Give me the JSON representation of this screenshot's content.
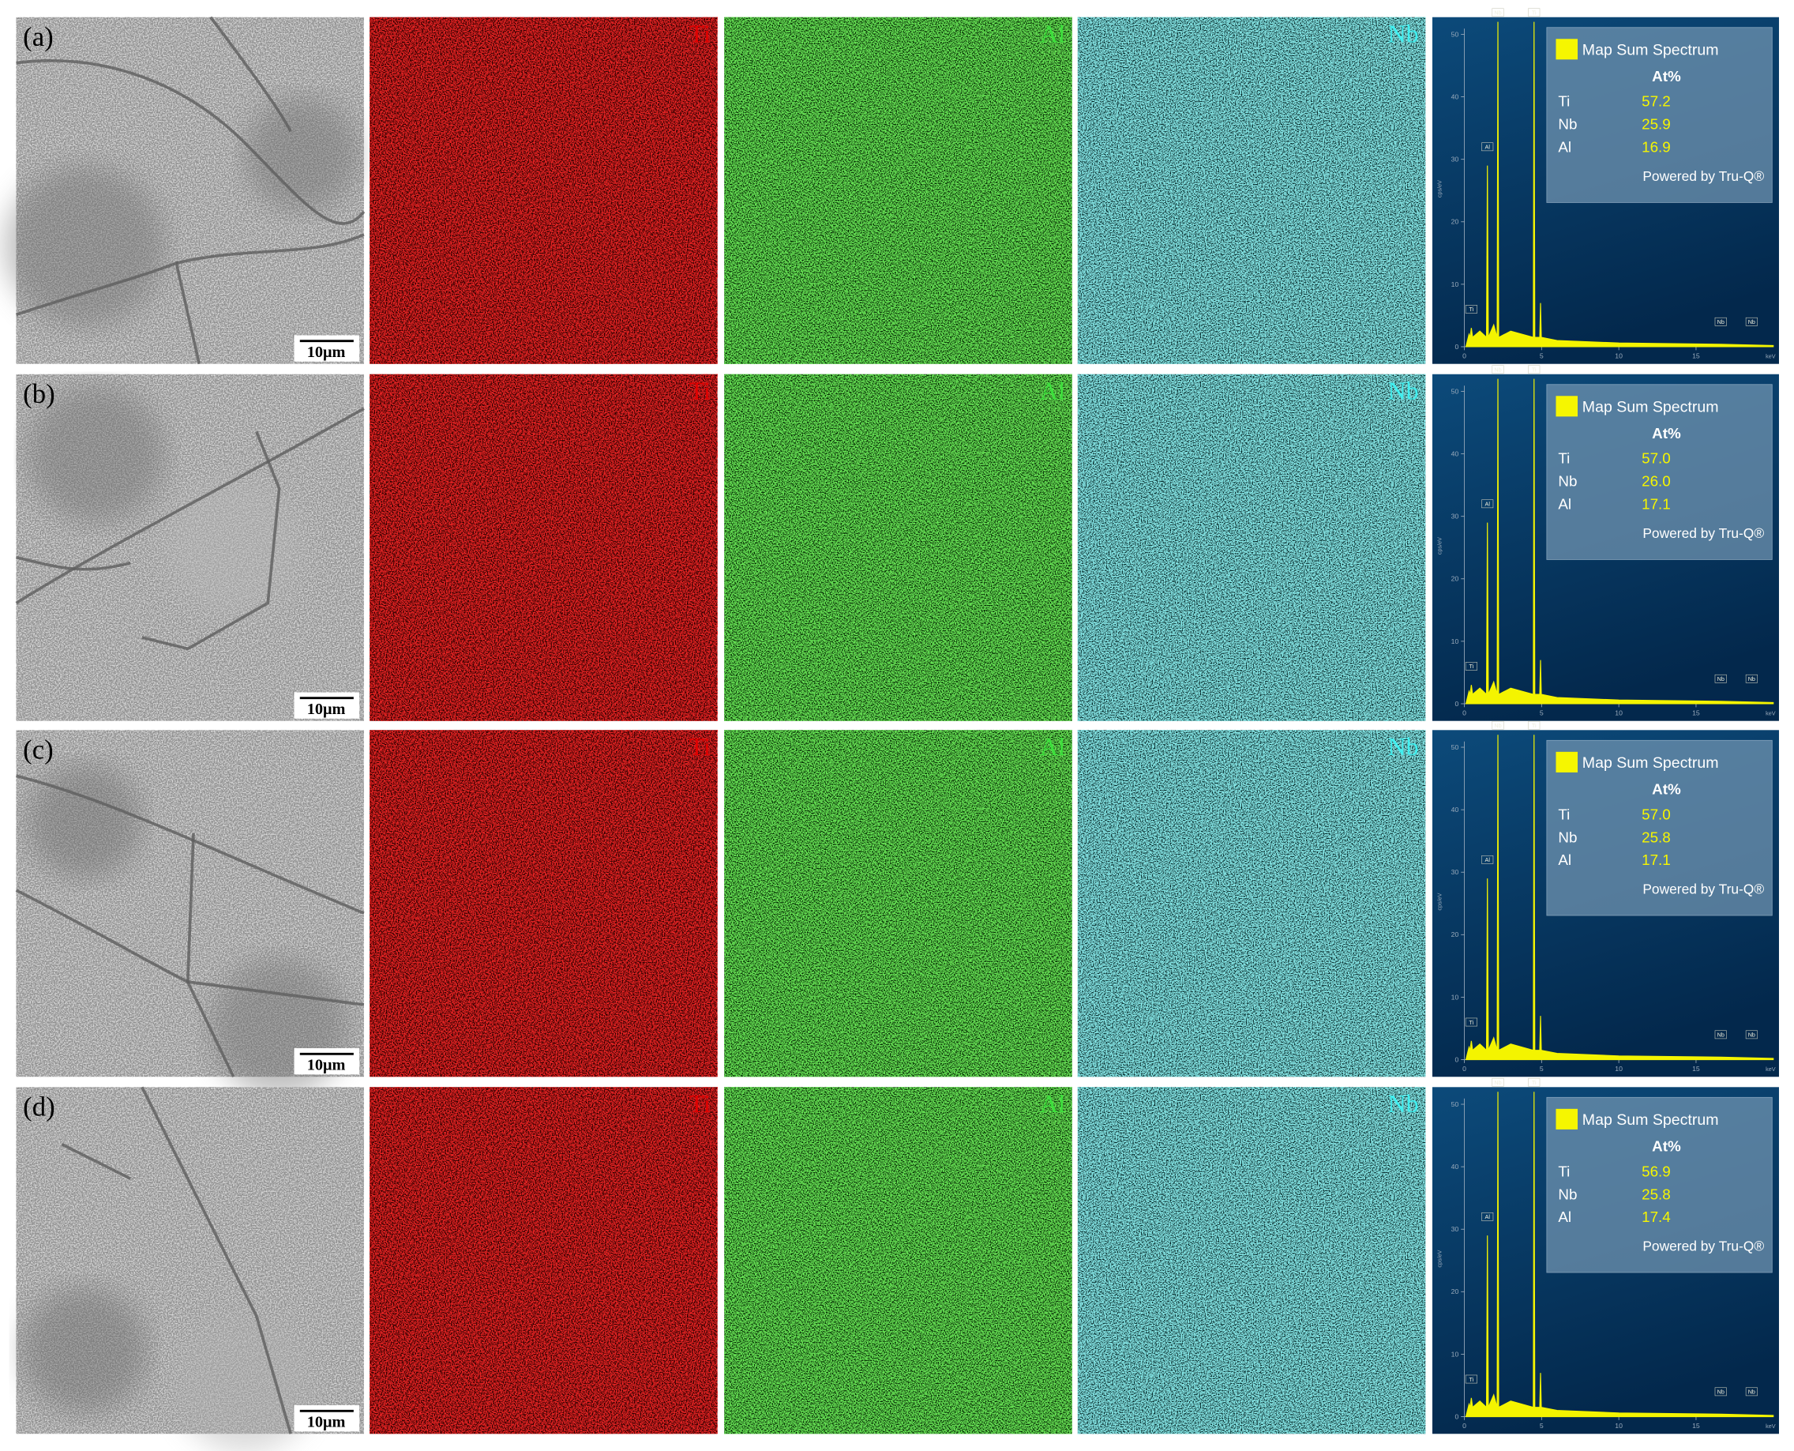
{
  "figure": {
    "rows": [
      {
        "label": "(a)",
        "scale_bar": "10μm",
        "maps": [
          "Ti",
          "Al",
          "Nb"
        ],
        "spectrum": {
          "legend": "Map Sum Spectrum",
          "header": "At%",
          "composition": [
            [
              "Ti",
              "57.2"
            ],
            [
              "Nb",
              "25.9"
            ],
            [
              "Al",
              "16.9"
            ]
          ],
          "footer": "Powered by Tru-Q®"
        }
      },
      {
        "label": "(b)",
        "scale_bar": "10μm",
        "maps": [
          "Ti",
          "Al",
          "Nb"
        ],
        "spectrum": {
          "legend": "Map Sum Spectrum",
          "header": "At%",
          "composition": [
            [
              "Ti",
              "57.0"
            ],
            [
              "Nb",
              "26.0"
            ],
            [
              "Al",
              "17.1"
            ]
          ],
          "footer": "Powered by Tru-Q®"
        }
      },
      {
        "label": "(c)",
        "scale_bar": "10μm",
        "maps": [
          "Ti",
          "Al",
          "Nb"
        ],
        "spectrum": {
          "legend": "Map Sum Spectrum",
          "header": "At%",
          "composition": [
            [
              "Ti",
              "57.0"
            ],
            [
              "Nb",
              "25.8"
            ],
            [
              "Al",
              "17.1"
            ]
          ],
          "footer": "Powered by Tru-Q®"
        }
      },
      {
        "label": "(d)",
        "scale_bar": "10μm",
        "maps": [
          "Ti",
          "Al",
          "Nb"
        ],
        "spectrum": {
          "legend": "Map Sum Spectrum",
          "header": "At%",
          "composition": [
            [
              "Ti",
              "56.9"
            ],
            [
              "Nb",
              "25.8"
            ],
            [
              "Al",
              "17.4"
            ]
          ],
          "footer": "Powered by Tru-Q®"
        }
      }
    ],
    "spectrum_axes": {
      "y_label": "cps/eV",
      "x_label": "keV",
      "yticks": [
        0,
        10,
        20,
        30,
        40,
        50
      ],
      "xticks": [
        0,
        5,
        10,
        15
      ],
      "peak_labels": [
        "Ti",
        "Al",
        "Nb",
        "Ti",
        "Nb",
        "Nb"
      ]
    }
  }
}
